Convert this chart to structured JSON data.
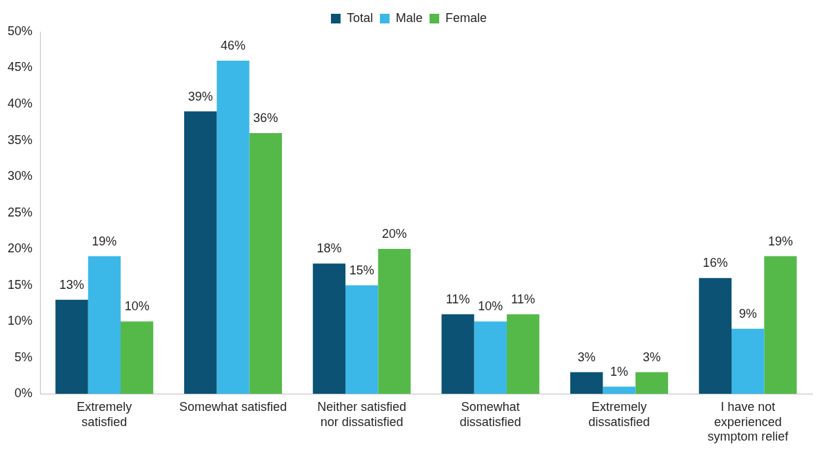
{
  "chart_data": {
    "type": "bar",
    "categories": [
      "Extremely satisfied",
      "Somewhat satisfied",
      "Neither satisfied nor dissatisfied",
      "Somewhat dissatisfied",
      "Extremely dissatisfied",
      "I have not experienced symptom relief"
    ],
    "series": [
      {
        "name": "Total",
        "color": "#0b5274",
        "values": [
          13,
          39,
          18,
          11,
          3,
          16
        ],
        "value_labels": [
          "13%",
          "39%",
          "18%",
          "11%",
          "3%",
          "16%"
        ]
      },
      {
        "name": "Male",
        "color": "#3bb8e8",
        "values": [
          19,
          46,
          15,
          10,
          1,
          9
        ],
        "value_labels": [
          "19%",
          "46%",
          "15%",
          "10%",
          "1%",
          "9%"
        ]
      },
      {
        "name": "Female",
        "color": "#55b94a",
        "values": [
          10,
          36,
          20,
          11,
          3,
          19
        ],
        "value_labels": [
          "10%",
          "36%",
          "20%",
          "11%",
          "3%",
          "19%"
        ]
      }
    ],
    "ylim": [
      0,
      50
    ],
    "yticks": [
      {
        "value": 0,
        "label": "0%"
      },
      {
        "value": 5,
        "label": "5%"
      },
      {
        "value": 10,
        "label": "10%"
      },
      {
        "value": 15,
        "label": "15%"
      },
      {
        "value": 20,
        "label": "20%"
      },
      {
        "value": 25,
        "label": "25%"
      },
      {
        "value": 30,
        "label": "30%"
      },
      {
        "value": 35,
        "label": "35%"
      },
      {
        "value": 40,
        "label": "40%"
      },
      {
        "value": 45,
        "label": "45%"
      },
      {
        "value": 50,
        "label": "50%"
      }
    ],
    "grid": false,
    "legend": "top"
  }
}
